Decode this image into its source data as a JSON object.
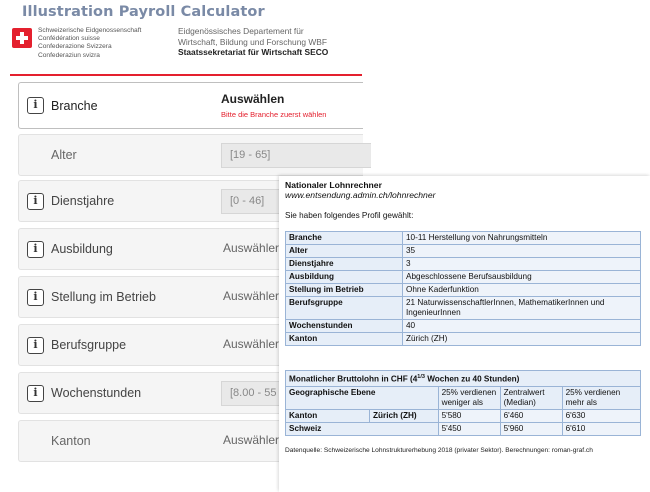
{
  "page": {
    "title": "Illustration Payroll Calculator"
  },
  "header": {
    "confederation_lines": [
      "Schweizerische Eidgenossenschaft",
      "Confédération suisse",
      "Confederazione Svizzera",
      "Confederaziun svizra"
    ],
    "department_lines": [
      "Eidgenössisches Departement für",
      "Wirtschaft, Bildung und Forschung WBF"
    ],
    "secretariat": "Staatssekretariat für Wirtschaft SECO",
    "accent_color": "#e4202e"
  },
  "form": {
    "info_glyph": "i",
    "rows": [
      {
        "label": "Branche",
        "value": "Auswählen",
        "hint": "Bitte die Branche zuerst wählen"
      },
      {
        "label": "Alter",
        "value": "[19 - 65]"
      },
      {
        "label": "Dienstjahre",
        "value": "[0 - 46]"
      },
      {
        "label": "Ausbildung",
        "value": "Auswähler"
      },
      {
        "label": "Stellung im Betrieb",
        "value": "Auswähler"
      },
      {
        "label": "Berufsgruppe",
        "value": "Auswähler"
      },
      {
        "label": "Wochenstunden",
        "value": "[8.00 - 55"
      },
      {
        "label": "Kanton",
        "value": "Auswähler"
      }
    ]
  },
  "result": {
    "title": "Nationaler Lohnrechner",
    "url": "www.entsendung.admin.ch/lohnrechner",
    "intro": "Sie haben folgendes Profil gewählt:",
    "profile": [
      {
        "key": "Branche",
        "value": "10-11 Herstellung von Nahrungsmitteln"
      },
      {
        "key": "Alter",
        "value": "35"
      },
      {
        "key": "Dienstjahre",
        "value": "3"
      },
      {
        "key": "Ausbildung",
        "value": "Abgeschlossene Berufsausbildung"
      },
      {
        "key": "Stellung im Betrieb",
        "value": "Ohne Kaderfunktion"
      },
      {
        "key": "Berufsgruppe",
        "value": "21 NaturwissenschaftlerInnen, MathematikerInnen und IngenieurInnen"
      },
      {
        "key": "Wochenstunden",
        "value": "40"
      },
      {
        "key": "Kanton",
        "value": "Zürich (ZH)"
      }
    ],
    "salary": {
      "caption_pre": "Monatlicher Bruttolohn in CHF (4",
      "caption_sup": "1/3",
      "caption_post": " Wochen zu 40 Stunden)",
      "headers": {
        "level": "Geographische Ebene",
        "low": "25% verdienen weniger als",
        "median": "Zentralwert (Median)",
        "high": "25% verdienen mehr als"
      },
      "rows": [
        {
          "level": "Kanton",
          "region": "Zürich (ZH)",
          "low": "5'580",
          "median": "6'460",
          "high": "6'630"
        },
        {
          "level": "Schweiz",
          "region": "",
          "low": "5'450",
          "median": "5'960",
          "high": "6'610"
        }
      ]
    },
    "footnote": "Datenquelle: Schweizerische Lohnstrukturerhebung 2018 (privater Sektor). Berechnungen: roman-graf.ch"
  }
}
